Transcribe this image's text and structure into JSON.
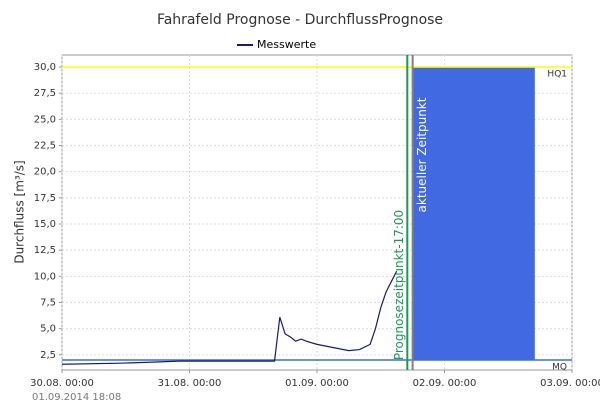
{
  "chart_data": {
    "type": "line",
    "title": "Fahrafeld Prognose - DurchflussPrognose",
    "ylabel": "Durchfluss [m³/s]",
    "footnote": "01.09.2014 18:08",
    "xlim": [
      "2014-08-30T00:00",
      "2014-09-03T00:00"
    ],
    "xticks": [
      {
        "value": "2014-08-30T00:00",
        "label": "30.08. 00:00"
      },
      {
        "value": "2014-08-31T00:00",
        "label": "31.08. 00:00"
      },
      {
        "value": "2014-09-01T00:00",
        "label": "01.09. 00:00"
      },
      {
        "value": "2014-09-02T00:00",
        "label": "02.09. 00:00"
      },
      {
        "value": "2014-09-03T00:00",
        "label": "03.09. 00:00"
      }
    ],
    "ylim": [
      1.05,
      31.15
    ],
    "yticks": [
      {
        "value": 2.5,
        "label": "2,5"
      },
      {
        "value": 5,
        "label": "5,0"
      },
      {
        "value": 7.5,
        "label": "7,5"
      },
      {
        "value": 10,
        "label": "10,0"
      },
      {
        "value": 12.5,
        "label": "12,5"
      },
      {
        "value": 15,
        "label": "15,0"
      },
      {
        "value": 17.5,
        "label": "17,5"
      },
      {
        "value": 20,
        "label": "20,0"
      },
      {
        "value": 22.5,
        "label": "22,5"
      },
      {
        "value": 25,
        "label": "25,0"
      },
      {
        "value": 27.5,
        "label": "27,5"
      },
      {
        "value": 30,
        "label": "30,0"
      }
    ],
    "grid": true,
    "legend": "top",
    "series": [
      {
        "name": "Messwerte",
        "color": "#1a1a6e",
        "x": [
          "2014-08-30T00:00",
          "2014-08-30T11:00",
          "2014-08-30T17:00",
          "2014-08-30T22:00",
          "2014-08-31T08:00",
          "2014-08-31T16:00",
          "2014-08-31T17:00",
          "2014-08-31T18:00",
          "2014-08-31T19:00",
          "2014-08-31T20:00",
          "2014-08-31T21:00",
          "2014-08-31T22:00",
          "2014-09-01T00:00",
          "2014-09-01T03:00",
          "2014-09-01T06:00",
          "2014-09-01T08:00",
          "2014-09-01T10:00",
          "2014-09-01T11:00",
          "2014-09-01T12:00",
          "2014-09-01T13:00",
          "2014-09-01T14:00",
          "2014-09-01T15:00"
        ],
        "values": [
          1.6,
          1.7,
          1.8,
          1.9,
          1.9,
          1.9,
          6.1,
          4.5,
          4.2,
          3.8,
          4.0,
          3.8,
          3.5,
          3.2,
          2.9,
          3.0,
          3.5,
          5.0,
          7.0,
          8.5,
          9.5,
          10.5
        ]
      }
    ],
    "hlines": [
      {
        "y": 30,
        "label": "HQ1",
        "color": "#ffff00"
      },
      {
        "y": 2,
        "label": "MQ",
        "color": "#3a6fd8"
      }
    ],
    "vlines": [
      {
        "x": "2014-09-01T17:00",
        "label": "Prognosezeitpunkt-17:00",
        "color": "#1a9a50"
      },
      {
        "x": "2014-09-01T18:00",
        "label": "aktueller Zeitpunkt",
        "color": "#808080"
      }
    ],
    "forecast_band": {
      "x": [
        "2014-09-01T18:00",
        "2014-09-02T17:00"
      ],
      "color": "#4169e1"
    }
  }
}
